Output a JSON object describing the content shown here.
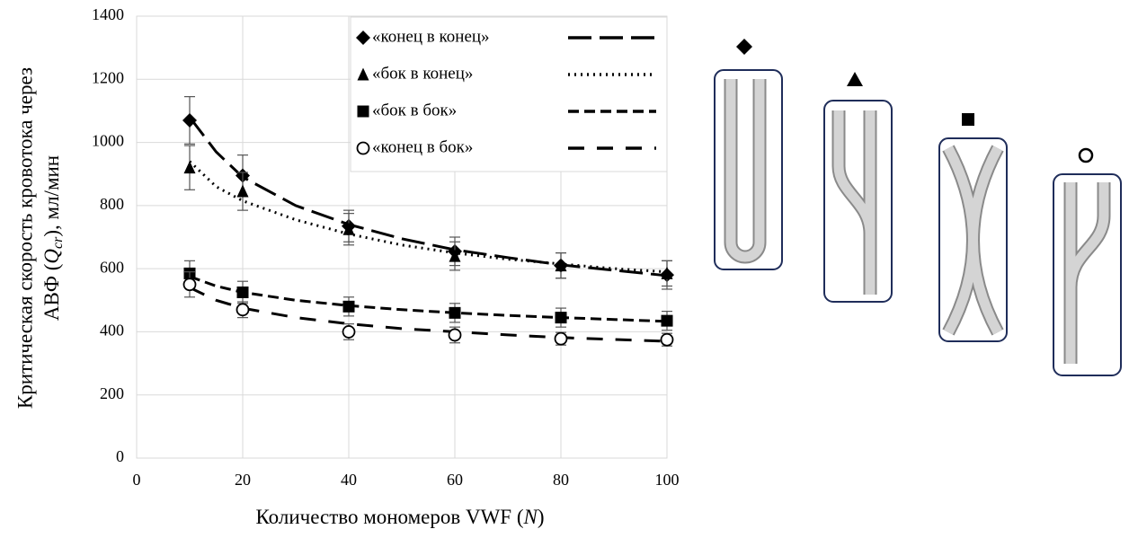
{
  "chart_data": {
    "type": "scatter",
    "xlabel": {
      "before": "Количество мономеров VWF (",
      "symbol": "N",
      "after": ")"
    },
    "ylabel": {
      "line1": "Критическая скорость кровотока через",
      "before": "АВФ (",
      "symbol": "Q",
      "subscript": "cr",
      "after": "), мл/мин"
    },
    "xlim": [
      0,
      100
    ],
    "xticks": [
      0,
      20,
      40,
      60,
      80,
      100
    ],
    "ylim": [
      0,
      1400
    ],
    "yticks": [
      0,
      200,
      400,
      600,
      800,
      1000,
      1200,
      1400
    ],
    "grid": true,
    "x": [
      10,
      20,
      40,
      60,
      80,
      100
    ],
    "fit_x": [
      10,
      15,
      20,
      30,
      40,
      50,
      60,
      70,
      80,
      90,
      100
    ],
    "series": [
      {
        "name": "«конец в конец»",
        "color": "#000000",
        "marker": "diamond",
        "dash": "long",
        "values": [
          1070,
          895,
          735,
          655,
          610,
          580
        ],
        "errors": [
          75,
          65,
          50,
          45,
          40,
          45
        ],
        "fit_values": [
          1080,
          970,
          890,
          800,
          740,
          695,
          660,
          635,
          612,
          595,
          578
        ]
      },
      {
        "name": "«бок в конец»",
        "color": "#000000",
        "marker": "triangle",
        "dash": "dotted",
        "values": [
          920,
          845,
          725,
          640,
          610,
          585
        ],
        "errors": [
          70,
          60,
          50,
          45,
          40,
          40
        ],
        "fit_values": [
          940,
          860,
          815,
          755,
          710,
          675,
          650,
          630,
          615,
          600,
          590
        ]
      },
      {
        "name": "«бок в бок»",
        "color": "#000000",
        "marker": "square",
        "dash": "short",
        "values": [
          585,
          525,
          480,
          460,
          445,
          435
        ],
        "errors": [
          40,
          35,
          30,
          30,
          30,
          30
        ],
        "fit_values": [
          575,
          545,
          525,
          500,
          483,
          470,
          460,
          452,
          445,
          439,
          433
        ]
      },
      {
        "name": "«конец в бок»",
        "color": "#000000",
        "marker": "circle",
        "dash": "wide",
        "values": [
          550,
          470,
          400,
          390,
          378,
          375
        ],
        "errors": [
          40,
          25,
          25,
          25,
          20,
          20
        ],
        "fit_values": [
          540,
          500,
          475,
          445,
          425,
          410,
          400,
          390,
          382,
          376,
          370
        ]
      }
    ]
  }
}
